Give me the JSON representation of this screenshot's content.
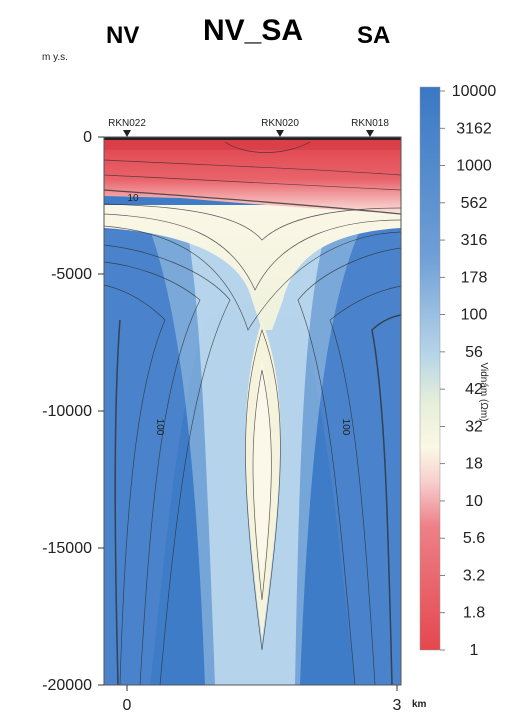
{
  "chart_data": {
    "type": "heatmap",
    "title": "NV_SA",
    "left_label": "NV",
    "right_label": "SA",
    "ylabel": "m y.s.",
    "xlabel_unit": "km",
    "x_ticks": [
      0,
      3
    ],
    "y_ticks": [
      0,
      -5000,
      -10000,
      -15000,
      -20000
    ],
    "xlim": [
      -0.3,
      3.1
    ],
    "ylim": [
      -20000,
      2000
    ],
    "stations": [
      {
        "name": "RKN022",
        "x": 0.0
      },
      {
        "name": "RKN020",
        "x": 1.7
      },
      {
        "name": "RKN018",
        "x": 2.7
      }
    ],
    "colorbar": {
      "label": "Vidnám (Ωm)",
      "scale": "log",
      "ticks": [
        "10000",
        "3162",
        "1000",
        "562",
        "316",
        "178",
        "100",
        "56",
        "42",
        "32",
        "18",
        "10",
        "5.6",
        "3.2",
        "1.8",
        "1"
      ],
      "colors": {
        "low": "#e5474e",
        "mid": "#fbf8e4",
        "high": "#3a78c4"
      }
    },
    "contour_labels": [
      {
        "text": "10"
      },
      {
        "text": "100"
      },
      {
        "text": "100"
      }
    ]
  }
}
